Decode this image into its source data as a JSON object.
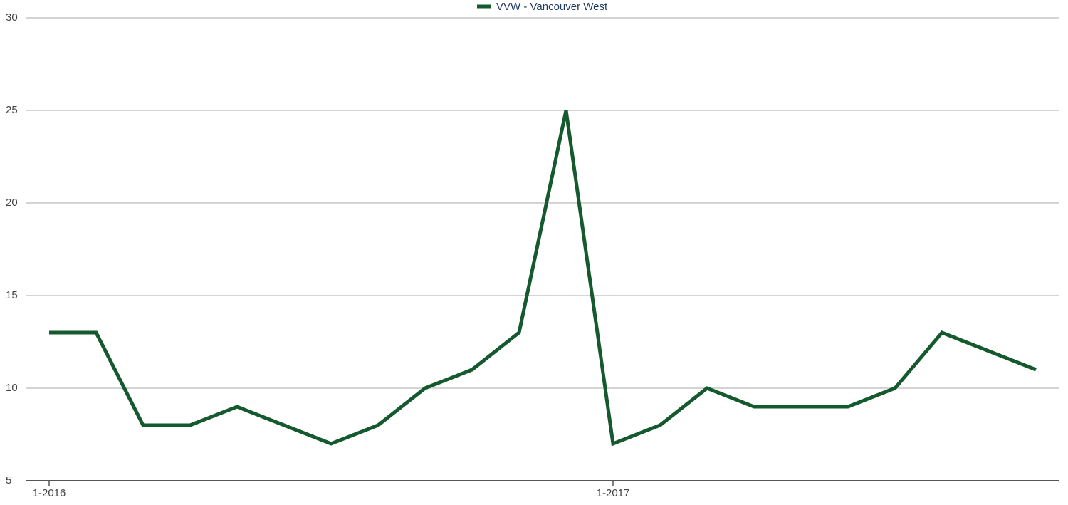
{
  "chart_data": {
    "type": "line",
    "categories": [
      "1-2016",
      null,
      null,
      null,
      null,
      null,
      null,
      null,
      null,
      null,
      null,
      null,
      "1-2017",
      null,
      null,
      null,
      null,
      null,
      null,
      null,
      null,
      null
    ],
    "series": [
      {
        "name": "VVW - Vancouver West",
        "color": "#155a2e",
        "values": [
          13,
          13,
          8,
          8,
          9,
          8,
          7,
          8,
          10,
          11,
          13,
          25,
          7,
          8,
          10,
          9,
          9,
          9,
          10,
          13,
          12,
          11
        ]
      }
    ],
    "ylim": [
      5,
      30
    ],
    "yticks": [
      5,
      10,
      15,
      20,
      25,
      30
    ],
    "grid": true,
    "legend": "top"
  }
}
